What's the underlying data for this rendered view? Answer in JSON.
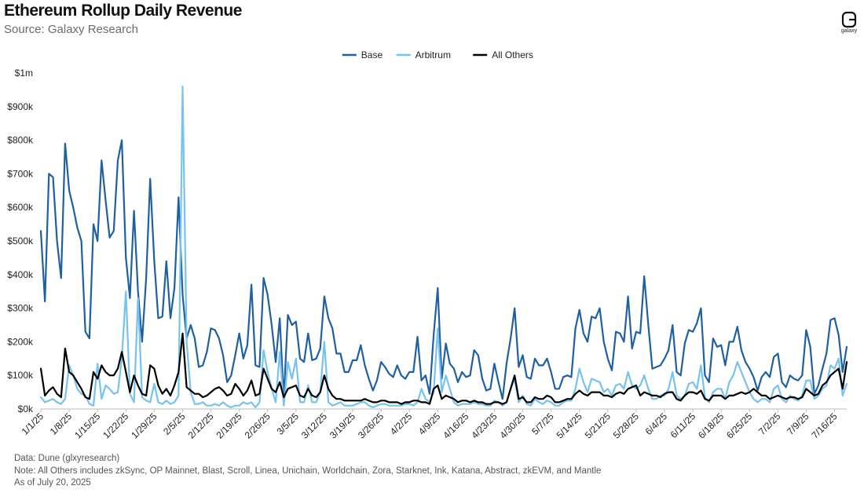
{
  "header": {
    "title": "Ethereum Rollup Daily Revenue",
    "subtitle": "Source: Galaxy Research",
    "logo_text": "galaxy"
  },
  "footer": {
    "data_note": "Data: Dune (glxyresearch)",
    "others_note": "Note: All Others includes zkSync, OP Mainnet, Blast, Scroll, Linea, Unichain, Worldchain, Zora, Starknet, Ink, Katana, Abstract, zkEVM, and Mantle",
    "as_of": "As of July 20, 2025"
  },
  "chart_data": {
    "type": "line",
    "title": "Ethereum Rollup Daily Revenue",
    "xlabel": "",
    "ylabel": "",
    "grid": false,
    "legend_position": "top-center",
    "ylim": [
      0,
      1000000
    ],
    "y_tick_labels": [
      "$0k",
      "$100k",
      "$200k",
      "$300k",
      "$400k",
      "$500k",
      "$600k",
      "$700k",
      "$800k",
      "$900k",
      "$1m"
    ],
    "x_tick_labels": [
      "1/1/25",
      "1/8/25",
      "1/15/25",
      "1/22/25",
      "1/29/25",
      "2/5/25",
      "2/12/25",
      "2/19/25",
      "2/26/25",
      "3/5/25",
      "3/12/25",
      "3/19/25",
      "3/26/25",
      "4/2/25",
      "4/9/25",
      "4/16/25",
      "4/23/25",
      "4/30/25",
      "5/7/25",
      "5/14/25",
      "5/21/25",
      "5/28/25",
      "6/4/25",
      "6/11/25",
      "6/18/25",
      "6/25/25",
      "7/2/25",
      "7/9/25",
      "7/16/25"
    ],
    "x_start": "1/1/25",
    "x_end": "7/20/25",
    "x_step_days": 1,
    "series": [
      {
        "name": "Base",
        "color": "#1f5fa3",
        "values": [
          530,
          320,
          700,
          690,
          500,
          390,
          790,
          650,
          600,
          540,
          500,
          230,
          210,
          550,
          500,
          740,
          620,
          510,
          530,
          740,
          800,
          450,
          330,
          590,
          350,
          200,
          390,
          685,
          440,
          270,
          275,
          440,
          270,
          360,
          630,
          340,
          210,
          250,
          210,
          125,
          130,
          170,
          240,
          235,
          210,
          160,
          80,
          100,
          160,
          225,
          150,
          190,
          370,
          130,
          125,
          390,
          340,
          250,
          140,
          270,
          30,
          280,
          250,
          260,
          150,
          140,
          225,
          145,
          150,
          180,
          335,
          270,
          240,
          165,
          165,
          110,
          110,
          145,
          145,
          190,
          130,
          90,
          55,
          85,
          140,
          125,
          105,
          95,
          130,
          100,
          90,
          110,
          110,
          215,
          85,
          100,
          45,
          220,
          360,
          90,
          195,
          135,
          120,
          80,
          110,
          95,
          100,
          175,
          160,
          90,
          55,
          60,
          135,
          80,
          30,
          135,
          210,
          300,
          125,
          160,
          95,
          90,
          150,
          130,
          130,
          150,
          110,
          60,
          60,
          95,
          100,
          95,
          240,
          295,
          225,
          200,
          275,
          270,
          300,
          200,
          150,
          115,
          230,
          225,
          200,
          335,
          180,
          230,
          225,
          395,
          250,
          120,
          125,
          130,
          150,
          175,
          250,
          110,
          100,
          195,
          235,
          230,
          255,
          300,
          100,
          80,
          210,
          185,
          190,
          130,
          200,
          200,
          245,
          175,
          140,
          120,
          95,
          55,
          95,
          110,
          95,
          155,
          165,
          80,
          65,
          100,
          90,
          85,
          100,
          235,
          185,
          45,
          70,
          120,
          165,
          265,
          270,
          220,
          110,
          185
        ]
      },
      {
        "name": "Arbitrum",
        "color": "#76c3ee",
        "values": [
          35,
          20,
          25,
          30,
          20,
          15,
          30,
          130,
          100,
          60,
          45,
          40,
          15,
          10,
          135,
          30,
          70,
          60,
          45,
          50,
          150,
          350,
          45,
          20,
          330,
          35,
          25,
          20,
          75,
          20,
          15,
          25,
          15,
          20,
          40,
          960,
          200,
          50,
          15,
          15,
          20,
          10,
          10,
          15,
          10,
          20,
          10,
          5,
          10,
          10,
          20,
          15,
          20,
          5,
          20,
          175,
          110,
          60,
          20,
          170,
          10,
          140,
          90,
          150,
          20,
          20,
          70,
          20,
          20,
          50,
          200,
          20,
          10,
          15,
          20,
          10,
          10,
          10,
          15,
          20,
          20,
          10,
          5,
          10,
          15,
          15,
          10,
          10,
          10,
          10,
          15,
          15,
          10,
          20,
          60,
          30,
          20,
          50,
          240,
          50,
          100,
          60,
          20,
          10,
          15,
          15,
          15,
          20,
          15,
          15,
          10,
          10,
          25,
          20,
          10,
          20,
          60,
          90,
          20,
          40,
          15,
          10,
          30,
          20,
          15,
          25,
          20,
          10,
          10,
          20,
          25,
          25,
          60,
          120,
          80,
          50,
          90,
          85,
          80,
          50,
          60,
          40,
          70,
          75,
          60,
          110,
          70,
          60,
          70,
          100,
          60,
          30,
          30,
          40,
          40,
          60,
          110,
          40,
          30,
          40,
          75,
          80,
          60,
          130,
          35,
          20,
          50,
          60,
          60,
          30,
          80,
          100,
          140,
          110,
          80,
          50,
          30,
          20,
          30,
          30,
          20,
          60,
          70,
          30,
          20,
          40,
          30,
          25,
          40,
          85,
          85,
          30,
          40,
          60,
          70,
          130,
          120,
          150,
          40,
          75
        ]
      },
      {
        "name": "All Others",
        "color": "#000000",
        "values": [
          120,
          40,
          55,
          65,
          45,
          35,
          180,
          110,
          100,
          80,
          60,
          35,
          30,
          110,
          90,
          130,
          110,
          100,
          100,
          120,
          170,
          110,
          50,
          100,
          70,
          45,
          40,
          130,
          120,
          70,
          45,
          60,
          40,
          70,
          110,
          225,
          65,
          55,
          45,
          45,
          35,
          40,
          50,
          60,
          65,
          55,
          40,
          45,
          75,
          60,
          40,
          55,
          85,
          40,
          45,
          120,
          90,
          60,
          50,
          80,
          35,
          60,
          65,
          70,
          40,
          35,
          60,
          40,
          35,
          50,
          100,
          60,
          40,
          30,
          30,
          25,
          25,
          25,
          25,
          25,
          30,
          25,
          20,
          20,
          25,
          25,
          20,
          20,
          20,
          15,
          20,
          20,
          25,
          25,
          20,
          20,
          15,
          60,
          70,
          30,
          40,
          35,
          30,
          20,
          25,
          25,
          20,
          25,
          20,
          20,
          15,
          15,
          20,
          20,
          15,
          20,
          60,
          100,
          30,
          35,
          20,
          20,
          35,
          30,
          30,
          40,
          35,
          20,
          20,
          25,
          30,
          30,
          45,
          55,
          45,
          40,
          50,
          50,
          50,
          40,
          40,
          35,
          45,
          50,
          45,
          60,
          65,
          70,
          40,
          50,
          45,
          40,
          40,
          35,
          45,
          50,
          50,
          30,
          25,
          40,
          50,
          50,
          45,
          55,
          30,
          25,
          40,
          40,
          40,
          30,
          40,
          40,
          45,
          50,
          45,
          50,
          60,
          50,
          40,
          40,
          30,
          35,
          40,
          35,
          30,
          35,
          35,
          30,
          35,
          60,
          50,
          40,
          45,
          70,
          80,
          100,
          110,
          120,
          60,
          140
        ]
      }
    ]
  }
}
